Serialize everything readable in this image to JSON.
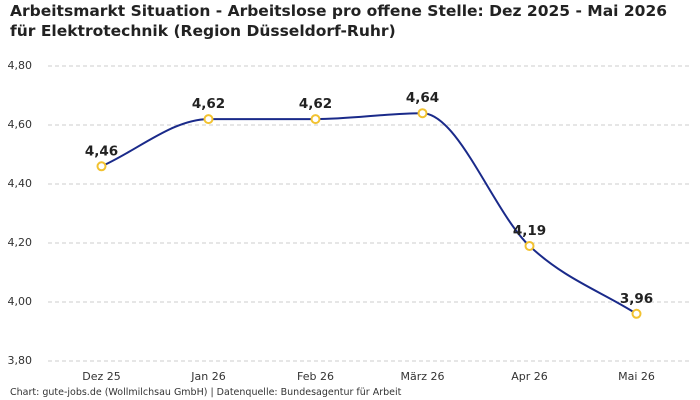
{
  "chart_data": {
    "type": "line",
    "title": "Arbeitsmarkt Situation - Arbeitslose pro offene Stelle: Dez 2025 - Mai 2026 für Elektrotechnik (Region Düsseldorf-Ruhr)",
    "source": "Chart: gute-jobs.de (Wollmilchsau GmbH) | Datenquelle: Bundesagentur für Arbeit",
    "categories": [
      "Dez 25",
      "Jan 26",
      "Feb 26",
      "März 26",
      "Apr 26",
      "Mai 26"
    ],
    "values": [
      4.46,
      4.62,
      4.62,
      4.64,
      4.19,
      3.96
    ],
    "value_labels": [
      "4,46",
      "4,62",
      "4,62",
      "4,64",
      "4,19",
      "3,96"
    ],
    "color": "#1a2a8a",
    "marker_color": "#f2c230",
    "ylim": [
      3.8,
      4.8
    ],
    "yticks": [
      {
        "value": 3.8,
        "label": "3,80"
      },
      {
        "value": 4.0,
        "label": "4,00"
      },
      {
        "value": 4.2,
        "label": "4,20"
      },
      {
        "value": 4.4,
        "label": "4,40"
      },
      {
        "value": 4.6,
        "label": "4,60"
      },
      {
        "value": 4.8,
        "label": "4,80"
      }
    ],
    "grid": true
  }
}
